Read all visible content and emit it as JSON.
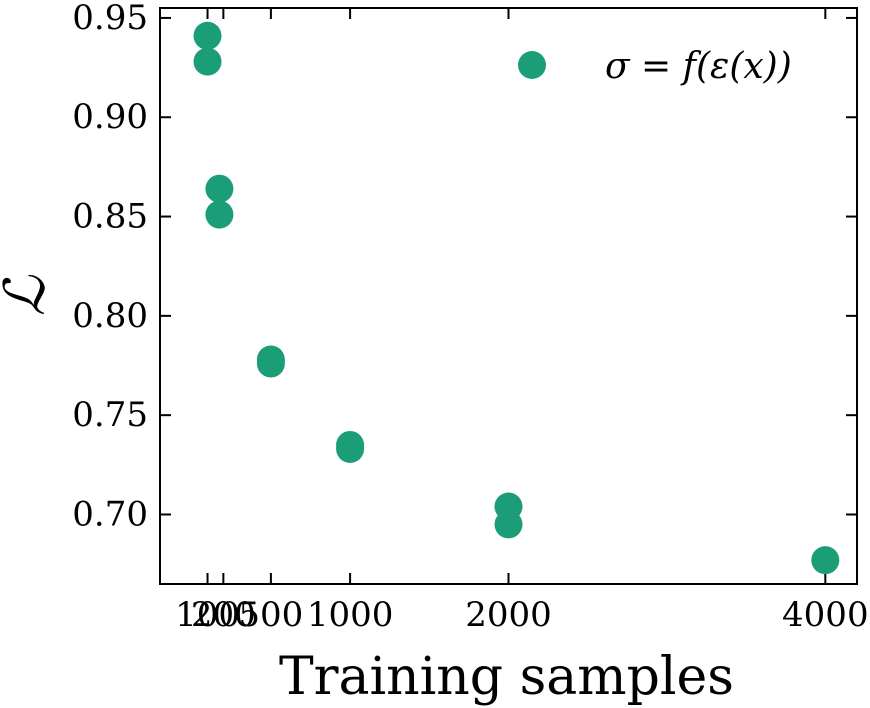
{
  "chart_data": {
    "type": "scatter",
    "xlabel": "Training samples",
    "ylabel": "ℒ",
    "xlim": [
      -200,
      4200
    ],
    "ylim": [
      0.665,
      0.955
    ],
    "x_ticks": [
      {
        "value": 100,
        "label": "100"
      },
      {
        "value": 200,
        "label": "200"
      },
      {
        "value": 500,
        "label": "500"
      },
      {
        "value": 1000,
        "label": "1000"
      },
      {
        "value": 2000,
        "label": "2000"
      },
      {
        "value": 4000,
        "label": "4000"
      }
    ],
    "y_ticks": [
      {
        "value": 0.7,
        "label": "0.70"
      },
      {
        "value": 0.75,
        "label": "0.75"
      },
      {
        "value": 0.8,
        "label": "0.80"
      },
      {
        "value": 0.85,
        "label": "0.85"
      },
      {
        "value": 0.9,
        "label": "0.90"
      },
      {
        "value": 0.95,
        "label": "0.95"
      }
    ],
    "grid": false,
    "legend_position": "top-right",
    "series": [
      {
        "name": "σ = f(ε(x))",
        "color": "#1b9e77",
        "points": [
          {
            "x": 100,
            "y": 0.941
          },
          {
            "x": 100,
            "y": 0.928
          },
          {
            "x": 175,
            "y": 0.864
          },
          {
            "x": 175,
            "y": 0.851
          },
          {
            "x": 500,
            "y": 0.778
          },
          {
            "x": 500,
            "y": 0.776
          },
          {
            "x": 1000,
            "y": 0.735
          },
          {
            "x": 1000,
            "y": 0.733
          },
          {
            "x": 2000,
            "y": 0.704
          },
          {
            "x": 2000,
            "y": 0.695
          },
          {
            "x": 4000,
            "y": 0.677
          }
        ]
      }
    ]
  }
}
